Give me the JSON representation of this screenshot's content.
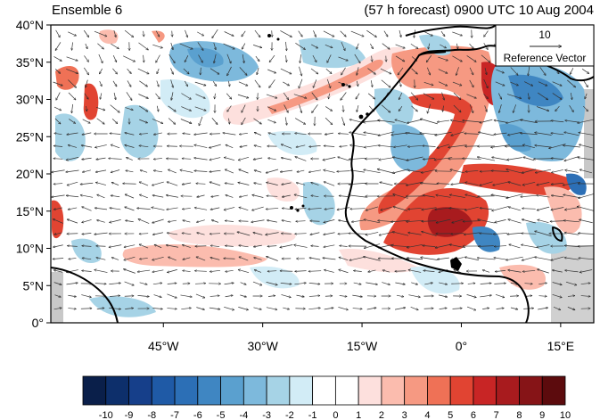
{
  "title_left": "Ensemble 6",
  "title_right": "(57 h forecast) 0900 UTC 10 Aug 2004",
  "lat_labels": [
    "40°N",
    "35°N",
    "30°N",
    "25°N",
    "20°N",
    "15°N",
    "10°N",
    "5°N",
    "0°"
  ],
  "lon_labels": [
    "45°W",
    "30°W",
    "15°W",
    "0°",
    "15°E"
  ],
  "lon_values": [
    -45,
    -30,
    -15,
    0,
    15
  ],
  "lat_values": [
    40,
    35,
    30,
    25,
    20,
    15,
    10,
    5,
    0
  ],
  "map_extent": {
    "lon_min": -62,
    "lon_max": 20,
    "lat_min": 0,
    "lat_max": 40
  },
  "reference_vector": {
    "value": "10",
    "label": "Reference Vector"
  },
  "colorbar": {
    "tick_labels": [
      "-10",
      "-9",
      "-8",
      "-7",
      "-6",
      "-5",
      "-4",
      "-3",
      "-2",
      "-1",
      "0",
      "1",
      "2",
      "3",
      "4",
      "5",
      "6",
      "7",
      "8",
      "9",
      "10"
    ],
    "colors": [
      "#0a1f4a",
      "#0d2f6b",
      "#163f8a",
      "#1f5aa6",
      "#2c6fb6",
      "#3f86c2",
      "#5aa0cf",
      "#7db9dc",
      "#a6d3e6",
      "#d2ecf6",
      "#ffffff",
      "#ffffff",
      "#fde0dd",
      "#fbbcae",
      "#f69982",
      "#ef7156",
      "#e14432",
      "#c82525",
      "#a81b1e",
      "#861417",
      "#5c0b0d"
    ]
  },
  "colors": {
    "warm_core": "#c82525",
    "cool_core": "#2c6fb6",
    "coast": "#000000",
    "land_mask": "#c8c8c8"
  }
}
